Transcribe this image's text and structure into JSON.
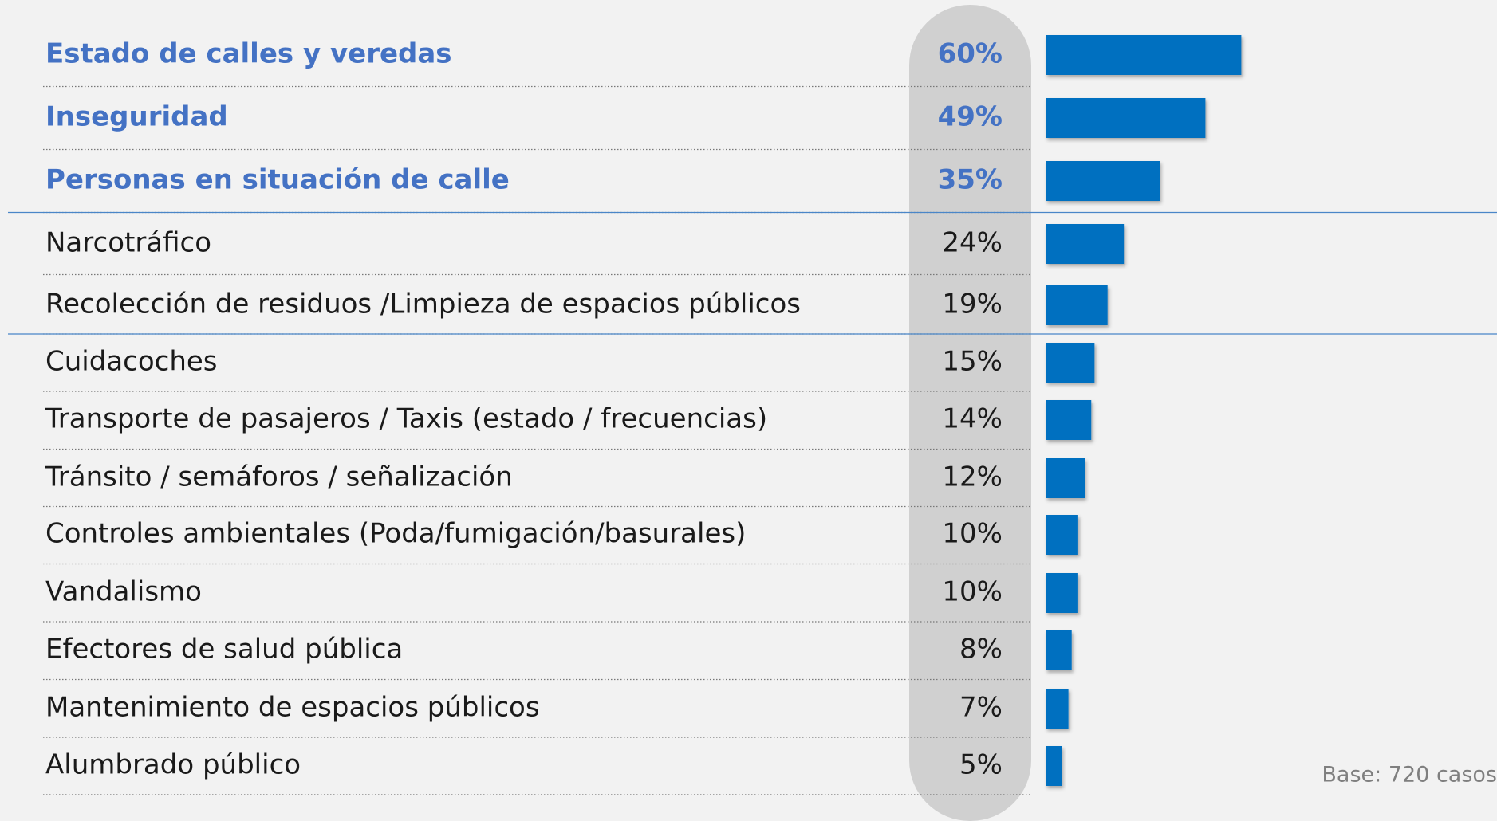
{
  "chart_data": {
    "type": "bar",
    "categories": [
      "Estado de calles y veredas",
      "Inseguridad",
      "Personas en situación de calle",
      "Narcotráfico",
      "Recolección de residuos /Limpieza de espacios públicos",
      "Cuidacoches",
      "Transporte de pasajeros / Taxis (estado / frecuencias)",
      "Tránsito / semáforos / señalización",
      "Controles ambientales (Poda/fumigación/basurales)",
      "Vandalismo",
      "Efectores de salud pública",
      "Mantenimiento de espacios públicos",
      "Alumbrado público"
    ],
    "values": [
      60,
      49,
      35,
      24,
      19,
      15,
      14,
      12,
      10,
      10,
      8,
      7,
      5
    ],
    "value_labels": [
      "60%",
      "49%",
      "35%",
      "24%",
      "19%",
      "15%",
      "14%",
      "12%",
      "10%",
      "10%",
      "8%",
      "7%",
      "5%"
    ],
    "color": "#0070c0",
    "highlight_color": "#4472c4",
    "highlight_count": 3,
    "annotation": "Base: 720 casos"
  }
}
